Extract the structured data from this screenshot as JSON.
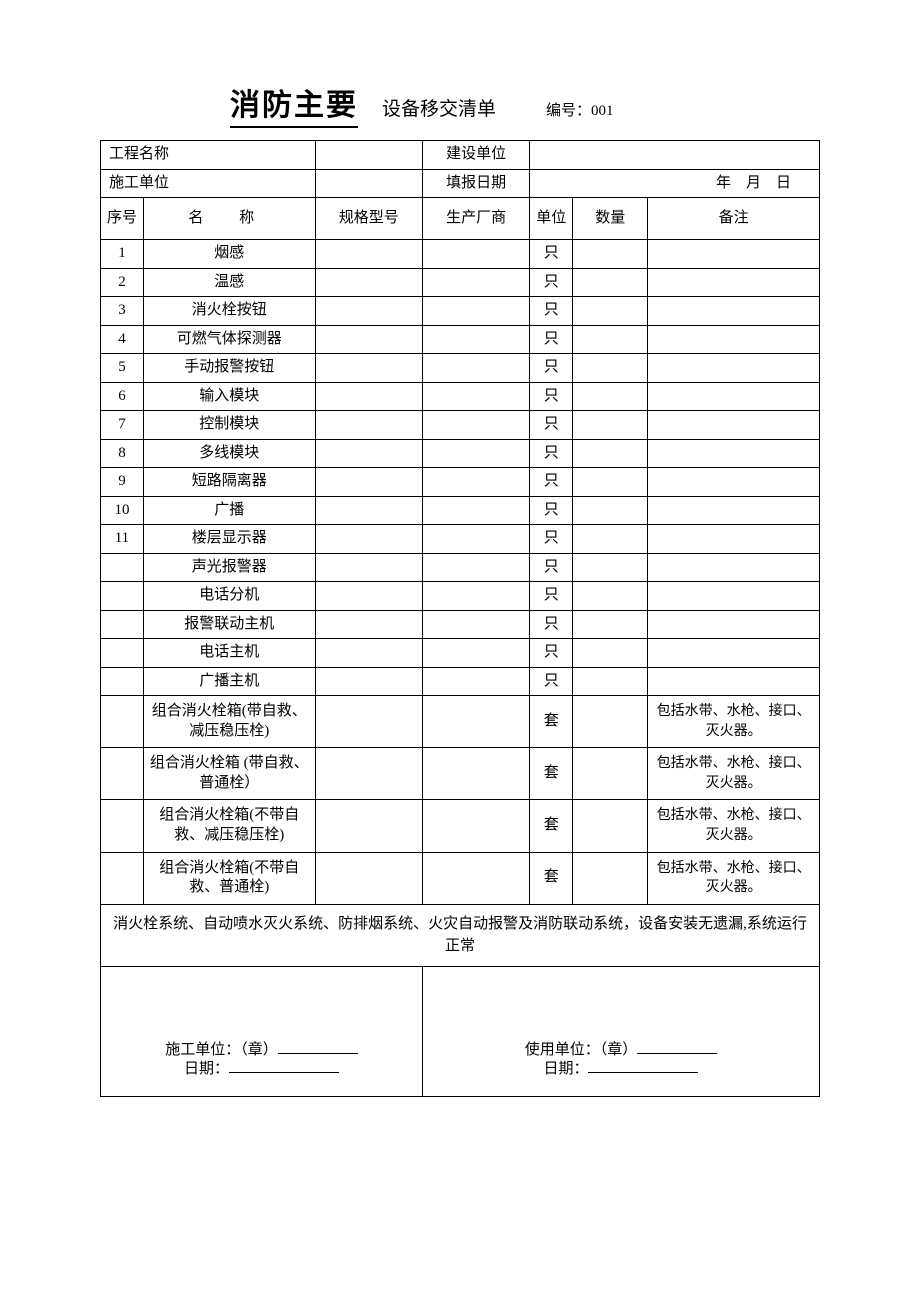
{
  "title_main": "消防主要",
  "title_sub": "设备移交清单",
  "serial_label": "编号：",
  "serial_no": "001",
  "info": {
    "project_label": "工程名称",
    "project_value": "",
    "owner_label": "建设单位",
    "owner_value": "",
    "contractor_label": "施工单位",
    "contractor_value": "",
    "date_label": "填报日期",
    "date_value_year": "年",
    "date_value_month": "月",
    "date_value_day": "日"
  },
  "headers": {
    "seq": "序号",
    "name": "名   称",
    "spec": "规格型号",
    "manufacturer": "生产厂商",
    "unit": "单位",
    "qty": "数量",
    "note": "备注"
  },
  "rows": [
    {
      "seq": "1",
      "name": "烟感",
      "spec": "",
      "mfr": "",
      "unit": "只",
      "qty": "",
      "note": ""
    },
    {
      "seq": "2",
      "name": "温感",
      "spec": "",
      "mfr": "",
      "unit": "只",
      "qty": "",
      "note": ""
    },
    {
      "seq": "3",
      "name": "消火栓按钮",
      "spec": "",
      "mfr": "",
      "unit": "只",
      "qty": "",
      "note": ""
    },
    {
      "seq": "4",
      "name": "可燃气体探测器",
      "spec": "",
      "mfr": "",
      "unit": "只",
      "qty": "",
      "note": ""
    },
    {
      "seq": "5",
      "name": "手动报警按钮",
      "spec": "",
      "mfr": "",
      "unit": "只",
      "qty": "",
      "note": ""
    },
    {
      "seq": "6",
      "name": "输入模块",
      "spec": "",
      "mfr": "",
      "unit": "只",
      "qty": "",
      "note": ""
    },
    {
      "seq": "7",
      "name": "控制模块",
      "spec": "",
      "mfr": "",
      "unit": "只",
      "qty": "",
      "note": ""
    },
    {
      "seq": "8",
      "name": "多线模块",
      "spec": "",
      "mfr": "",
      "unit": "只",
      "qty": "",
      "note": ""
    },
    {
      "seq": "9",
      "name": "短路隔离器",
      "spec": "",
      "mfr": "",
      "unit": "只",
      "qty": "",
      "note": ""
    },
    {
      "seq": "10",
      "name": "广播",
      "spec": "",
      "mfr": "",
      "unit": "只",
      "qty": "",
      "note": ""
    },
    {
      "seq": "11",
      "name": "楼层显示器",
      "spec": "",
      "mfr": "",
      "unit": "只",
      "qty": "",
      "note": ""
    },
    {
      "seq": "",
      "name": "声光报警器",
      "spec": "",
      "mfr": "",
      "unit": "只",
      "qty": "",
      "note": ""
    },
    {
      "seq": "",
      "name": "电话分机",
      "spec": "",
      "mfr": "",
      "unit": "只",
      "qty": "",
      "note": ""
    },
    {
      "seq": "",
      "name": "报警联动主机",
      "spec": "",
      "mfr": "",
      "unit": "只",
      "qty": "",
      "note": ""
    },
    {
      "seq": "",
      "name": "电话主机",
      "spec": "",
      "mfr": "",
      "unit": "只",
      "qty": "",
      "note": ""
    },
    {
      "seq": "",
      "name": "广播主机",
      "spec": "",
      "mfr": "",
      "unit": "只",
      "qty": "",
      "note": ""
    },
    {
      "seq": "",
      "name": "组合消火栓箱(带自救、减压稳压栓)",
      "spec": "",
      "mfr": "",
      "unit": "套",
      "qty": "",
      "note": "包括水带、水枪、接口、灭火器。",
      "tall": true
    },
    {
      "seq": "",
      "name": "组合消火栓箱 (带自救、普通栓）",
      "spec": "",
      "mfr": "",
      "unit": "套",
      "qty": "",
      "note": "包括水带、水枪、接口、灭火器。",
      "tall": true
    },
    {
      "seq": "",
      "name": "组合消火栓箱(不带自救、减压稳压栓)",
      "spec": "",
      "mfr": "",
      "unit": "套",
      "qty": "",
      "note": "包括水带、水枪、接口、灭火器。",
      "tall": true
    },
    {
      "seq": "",
      "name": "组合消火栓箱(不带自救、普通栓)",
      "spec": "",
      "mfr": "",
      "unit": "套",
      "qty": "",
      "note": "包括水带、水枪、接口、灭火器。",
      "tall": true
    }
  ],
  "summary": "消火栓系统、自动喷水灭火系统、防排烟系统、火灾自动报警及消防联动系统，设备安装无遗漏,系统运行正常",
  "sign": {
    "contractor_label": "施工单位：（章）",
    "user_label": "使用单位：（章）",
    "date_label": "日期："
  },
  "col_widths": [
    "40",
    "160",
    "100",
    "100",
    "40",
    "70",
    "160"
  ]
}
